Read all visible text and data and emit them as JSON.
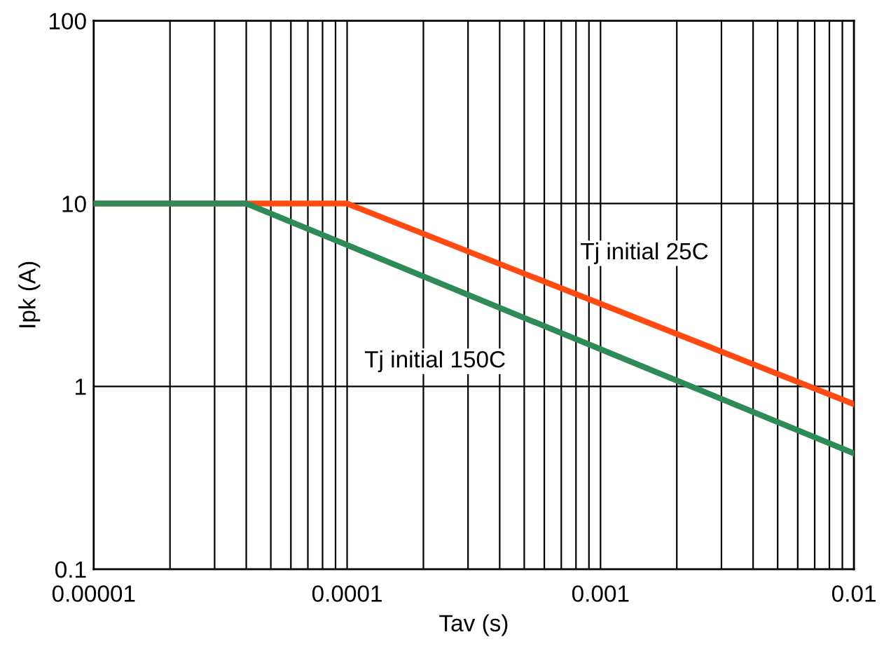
{
  "chart_data": {
    "type": "line",
    "xlabel": "Tav (s)",
    "ylabel": "Ipk (A)",
    "log": "xy",
    "grid": true,
    "legend": false,
    "marker": "none",
    "line_style": "solid",
    "xlim": [
      1e-05,
      0.01
    ],
    "ylim": [
      0.1,
      100
    ],
    "xticks": [
      {
        "value": 1e-05,
        "label": "0.00001"
      },
      {
        "value": 0.0001,
        "label": "0.0001"
      },
      {
        "value": 0.001,
        "label": "0.001"
      },
      {
        "value": 0.01,
        "label": "0.01"
      }
    ],
    "yticks": [
      0.1,
      1,
      10,
      100
    ],
    "series": [
      {
        "name": "Tj initial 25C",
        "color": "#ff4a12",
        "x": [
          1e-05,
          0.0001,
          0.01
        ],
        "values": [
          10,
          10,
          0.8
        ]
      },
      {
        "name": "Tj initial 150C",
        "color": "#2e8b57",
        "x": [
          1e-05,
          4e-05,
          0.01
        ],
        "values": [
          10,
          10,
          0.43
        ]
      }
    ]
  }
}
